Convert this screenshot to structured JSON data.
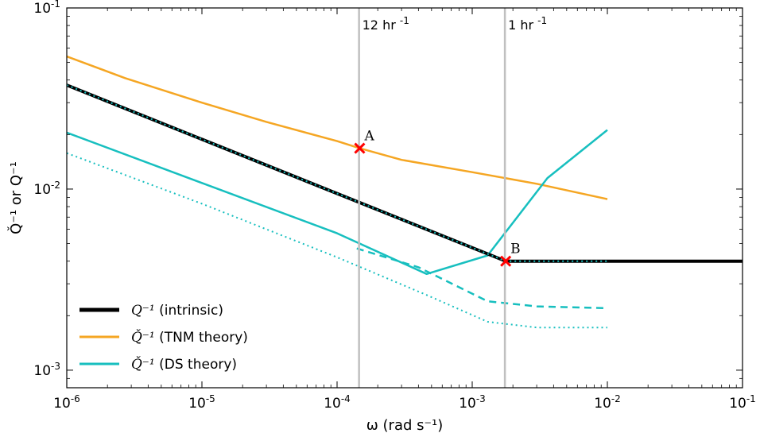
{
  "chart_data": {
    "type": "line",
    "xscale": "log",
    "yscale": "log",
    "xlim": [
      1e-06,
      0.1
    ],
    "ylim": [
      0.0008,
      0.1
    ],
    "xlabel": "ω (rad s⁻¹)",
    "ylabel": "Q̌⁻¹ or Q⁻¹",
    "x_ticks": [
      {
        "value": 1e-06,
        "base": "10",
        "exp": "-6"
      },
      {
        "value": 1e-05,
        "base": "10",
        "exp": "-5"
      },
      {
        "value": 0.0001,
        "base": "10",
        "exp": "-4"
      },
      {
        "value": 0.001,
        "base": "10",
        "exp": "-3"
      },
      {
        "value": 0.01,
        "base": "10",
        "exp": "-2"
      },
      {
        "value": 0.1,
        "base": "10",
        "exp": "-1"
      }
    ],
    "y_ticks": [
      {
        "value": 0.001,
        "base": "10",
        "exp": "-3"
      },
      {
        "value": 0.01,
        "base": "10",
        "exp": "-2"
      },
      {
        "value": 0.1,
        "base": "10",
        "exp": "-1"
      }
    ],
    "grid": false,
    "legend_position": "lower-left",
    "series": [
      {
        "key": "tnm",
        "legend": true,
        "color": "#f5a623",
        "style": "solid",
        "width": 2.5,
        "x": [
          1e-06,
          2.7e-06,
          1e-05,
          3e-05,
          0.0001,
          0.000147,
          0.0003,
          0.001,
          0.003,
          0.01
        ],
        "y": [
          0.054,
          0.041,
          0.03,
          0.0235,
          0.0184,
          0.0168,
          0.0145,
          0.0124,
          0.0107,
          0.0088
        ]
      },
      {
        "key": "intrinsic",
        "legend": true,
        "color": "#000000",
        "style": "solid",
        "width": 4,
        "x": [
          1e-06,
          0.00177,
          0.1
        ],
        "y": [
          0.0375,
          0.004,
          0.004
        ]
      },
      {
        "key": "intrinsic_dotted",
        "legend": false,
        "color": "#17bfbf",
        "style": "dotted",
        "width": 2,
        "x": [
          1e-06,
          0.00177,
          0.01
        ],
        "y": [
          0.0375,
          0.004,
          0.004
        ]
      },
      {
        "key": "ds_solid",
        "legend": true,
        "color": "#17bfbf",
        "style": "solid",
        "width": 2.5,
        "x": [
          1e-06,
          1e-05,
          0.0001,
          0.00046,
          0.0013,
          0.0036,
          0.01
        ],
        "y": [
          0.0205,
          0.0108,
          0.0057,
          0.0034,
          0.0043,
          0.0115,
          0.0212
        ]
      },
      {
        "key": "ds_dashed",
        "legend": false,
        "color": "#17bfbf",
        "style": "dashed",
        "width": 2.5,
        "x": [
          0.00014,
          0.0004,
          0.0013,
          0.003,
          0.01
        ],
        "y": [
          0.0047,
          0.0037,
          0.0024,
          0.00225,
          0.0022
        ]
      },
      {
        "key": "ds_dotted",
        "legend": false,
        "color": "#17bfbf",
        "style": "dotted",
        "width": 2,
        "x": [
          1e-06,
          1e-05,
          0.0001,
          0.00046,
          0.0013,
          0.003,
          0.01
        ],
        "y": [
          0.0158,
          0.0083,
          0.0042,
          0.0026,
          0.00185,
          0.00172,
          0.00172
        ]
      }
    ],
    "vlines": [
      {
        "x": 0.0001454,
        "label_base": "12 hr",
        "label_exp": "-1",
        "color": "#c0c0c0"
      },
      {
        "x": 0.001745,
        "label_base": "1 hr",
        "label_exp": "-1",
        "color": "#c0c0c0"
      }
    ],
    "points": [
      {
        "label": "A",
        "x": 0.000147,
        "y": 0.0168,
        "color": "#ff0000"
      },
      {
        "label": "B",
        "x": 0.00177,
        "y": 0.004,
        "color": "#ff0000"
      }
    ],
    "legend": [
      {
        "series": "intrinsic",
        "math": "Q⁻¹",
        "text": "(intrinsic)",
        "color": "#000000",
        "width": 5
      },
      {
        "series": "tnm",
        "math": "Q̌⁻¹",
        "text": "(TNM theory)",
        "color": "#f5a623",
        "width": 3
      },
      {
        "series": "ds_solid",
        "math": "Q̌⁻¹",
        "text": "(DS theory)",
        "color": "#17bfbf",
        "width": 3
      }
    ]
  }
}
